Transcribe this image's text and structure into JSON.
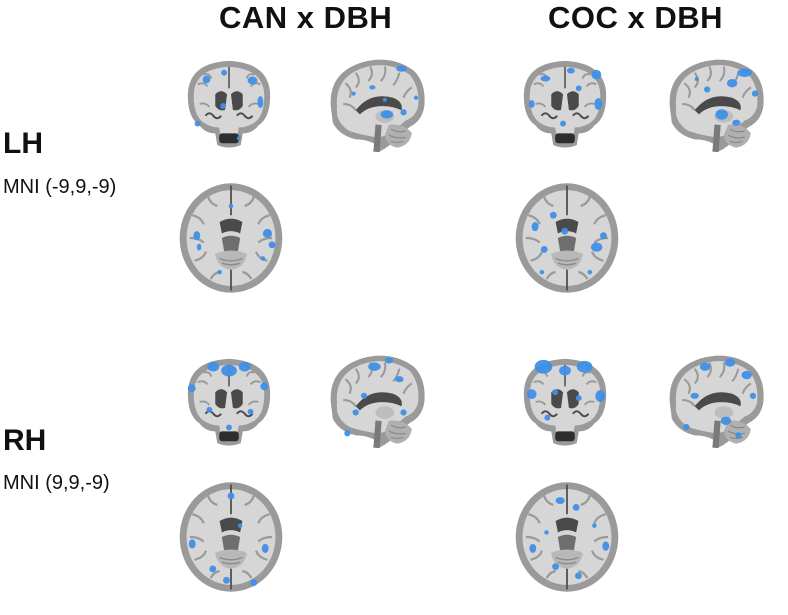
{
  "columns": [
    {
      "title": "CAN x DBH"
    },
    {
      "title": "COC x DBH"
    }
  ],
  "rows": [
    {
      "hemisphere": "LH",
      "coordinates": "MNI (-9,9,-9)"
    },
    {
      "hemisphere": "RH",
      "coordinates": "MNI (9,9,-9)"
    }
  ],
  "colors": {
    "activation": "#3f8fe6",
    "brain_gray": "#9a9a9a",
    "white_matter": "#d6d6d6",
    "dark_gray": "#4a4a4a"
  },
  "panels": [
    {
      "view": "coronal-slice",
      "hemisphere": "LH",
      "contrast": "CAN x DBH"
    },
    {
      "view": "sagittal-slice",
      "hemisphere": "LH",
      "contrast": "CAN x DBH"
    },
    {
      "view": "axial-slice",
      "hemisphere": "LH",
      "contrast": "CAN x DBH"
    },
    {
      "view": "coronal-slice",
      "hemisphere": "LH",
      "contrast": "COC x DBH"
    },
    {
      "view": "sagittal-slice",
      "hemisphere": "LH",
      "contrast": "COC x DBH"
    },
    {
      "view": "axial-slice",
      "hemisphere": "LH",
      "contrast": "COC x DBH"
    },
    {
      "view": "coronal-slice",
      "hemisphere": "RH",
      "contrast": "CAN x DBH"
    },
    {
      "view": "sagittal-slice",
      "hemisphere": "RH",
      "contrast": "CAN x DBH"
    },
    {
      "view": "axial-slice",
      "hemisphere": "RH",
      "contrast": "CAN x DBH"
    },
    {
      "view": "coronal-slice",
      "hemisphere": "RH",
      "contrast": "COC x DBH"
    },
    {
      "view": "sagittal-slice",
      "hemisphere": "RH",
      "contrast": "COC x DBH"
    },
    {
      "view": "axial-slice",
      "hemisphere": "RH",
      "contrast": "COC x DBH"
    }
  ]
}
